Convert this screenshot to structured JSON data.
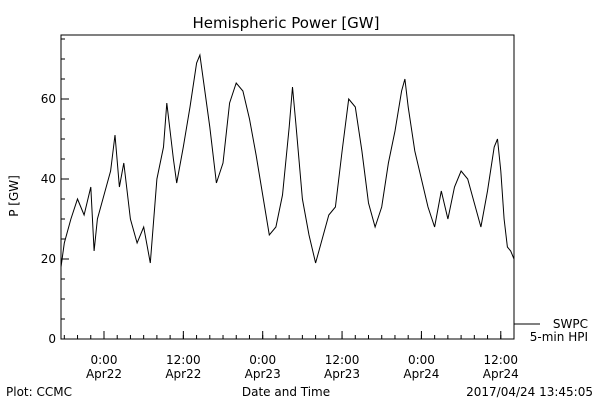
{
  "chart_data": {
    "type": "line",
    "title": "Hemispheric Power [GW]",
    "xlabel": "Date and Time",
    "ylabel": "P [GW]",
    "ylim": [
      0,
      76
    ],
    "xlim": [
      "2017-04-21T17:30",
      "2017-04-24T14:00"
    ],
    "yticks": [
      0,
      20,
      40,
      60
    ],
    "xticks": [
      {
        "x": "2017-04-22T00:00",
        "time": "0:00",
        "date": "Apr22"
      },
      {
        "x": "2017-04-22T12:00",
        "time": "12:00",
        "date": "Apr22"
      },
      {
        "x": "2017-04-23T00:00",
        "time": "0:00",
        "date": "Apr23"
      },
      {
        "x": "2017-04-23T12:00",
        "time": "12:00",
        "date": "Apr23"
      },
      {
        "x": "2017-04-24T00:00",
        "time": "0:00",
        "date": "Apr24"
      },
      {
        "x": "2017-04-24T12:00",
        "time": "12:00",
        "date": "Apr24"
      }
    ],
    "grid": false,
    "legend_position": "bottom-right",
    "series": [
      {
        "name": "SWPC 5-min HPI",
        "points": [
          [
            "2017-04-21T17:30",
            18
          ],
          [
            "2017-04-21T18:00",
            24
          ],
          [
            "2017-04-21T19:00",
            30
          ],
          [
            "2017-04-21T20:00",
            35
          ],
          [
            "2017-04-21T21:00",
            31
          ],
          [
            "2017-04-21T22:00",
            38
          ],
          [
            "2017-04-21T22:30",
            22
          ],
          [
            "2017-04-21T23:00",
            30
          ],
          [
            "2017-04-22T00:00",
            36
          ],
          [
            "2017-04-22T01:00",
            42
          ],
          [
            "2017-04-22T01:40",
            51
          ],
          [
            "2017-04-22T02:20",
            38
          ],
          [
            "2017-04-22T03:00",
            44
          ],
          [
            "2017-04-22T04:00",
            30
          ],
          [
            "2017-04-22T05:00",
            24
          ],
          [
            "2017-04-22T06:00",
            28
          ],
          [
            "2017-04-22T07:00",
            19
          ],
          [
            "2017-04-22T08:00",
            40
          ],
          [
            "2017-04-22T09:00",
            48
          ],
          [
            "2017-04-22T09:30",
            59
          ],
          [
            "2017-04-22T10:00",
            52
          ],
          [
            "2017-04-22T10:30",
            45
          ],
          [
            "2017-04-22T11:00",
            39
          ],
          [
            "2017-04-22T12:00",
            48
          ],
          [
            "2017-04-22T13:00",
            58
          ],
          [
            "2017-04-22T14:00",
            69
          ],
          [
            "2017-04-22T14:30",
            71
          ],
          [
            "2017-04-22T15:00",
            65
          ],
          [
            "2017-04-22T16:00",
            53
          ],
          [
            "2017-04-22T17:00",
            39
          ],
          [
            "2017-04-22T18:00",
            44
          ],
          [
            "2017-04-22T19:00",
            59
          ],
          [
            "2017-04-22T20:00",
            64
          ],
          [
            "2017-04-22T21:00",
            62
          ],
          [
            "2017-04-22T22:00",
            55
          ],
          [
            "2017-04-22T23:00",
            46
          ],
          [
            "2017-04-23T00:00",
            36
          ],
          [
            "2017-04-23T01:00",
            26
          ],
          [
            "2017-04-23T02:00",
            28
          ],
          [
            "2017-04-23T03:00",
            36
          ],
          [
            "2017-04-23T04:00",
            53
          ],
          [
            "2017-04-23T04:30",
            63
          ],
          [
            "2017-04-23T05:00",
            54
          ],
          [
            "2017-04-23T06:00",
            35
          ],
          [
            "2017-04-23T07:00",
            26
          ],
          [
            "2017-04-23T08:00",
            19
          ],
          [
            "2017-04-23T09:00",
            25
          ],
          [
            "2017-04-23T10:00",
            31
          ],
          [
            "2017-04-23T11:00",
            33
          ],
          [
            "2017-04-23T12:00",
            47
          ],
          [
            "2017-04-23T13:00",
            60
          ],
          [
            "2017-04-23T14:00",
            58
          ],
          [
            "2017-04-23T15:00",
            47
          ],
          [
            "2017-04-23T16:00",
            34
          ],
          [
            "2017-04-23T17:00",
            28
          ],
          [
            "2017-04-23T18:00",
            33
          ],
          [
            "2017-04-23T19:00",
            44
          ],
          [
            "2017-04-23T20:00",
            52
          ],
          [
            "2017-04-23T21:00",
            62
          ],
          [
            "2017-04-23T21:30",
            65
          ],
          [
            "2017-04-23T22:00",
            58
          ],
          [
            "2017-04-23T23:00",
            47
          ],
          [
            "2017-04-24T00:00",
            40
          ],
          [
            "2017-04-24T01:00",
            33
          ],
          [
            "2017-04-24T02:00",
            28
          ],
          [
            "2017-04-24T03:00",
            37
          ],
          [
            "2017-04-24T04:00",
            30
          ],
          [
            "2017-04-24T05:00",
            38
          ],
          [
            "2017-04-24T06:00",
            42
          ],
          [
            "2017-04-24T07:00",
            40
          ],
          [
            "2017-04-24T08:00",
            34
          ],
          [
            "2017-04-24T09:00",
            28
          ],
          [
            "2017-04-24T10:00",
            37
          ],
          [
            "2017-04-24T11:00",
            48
          ],
          [
            "2017-04-24T11:30",
            50
          ],
          [
            "2017-04-24T12:00",
            42
          ],
          [
            "2017-04-24T12:30",
            30
          ],
          [
            "2017-04-24T13:00",
            23
          ],
          [
            "2017-04-24T13:30",
            22
          ],
          [
            "2017-04-24T14:00",
            20
          ]
        ]
      }
    ]
  },
  "legend": {
    "line1": "SWPC",
    "line2": "5-min HPI"
  },
  "footer": {
    "left": "Plot: CCMC",
    "center": "Date and Time",
    "right": "2017/04/24 13:45:05"
  }
}
